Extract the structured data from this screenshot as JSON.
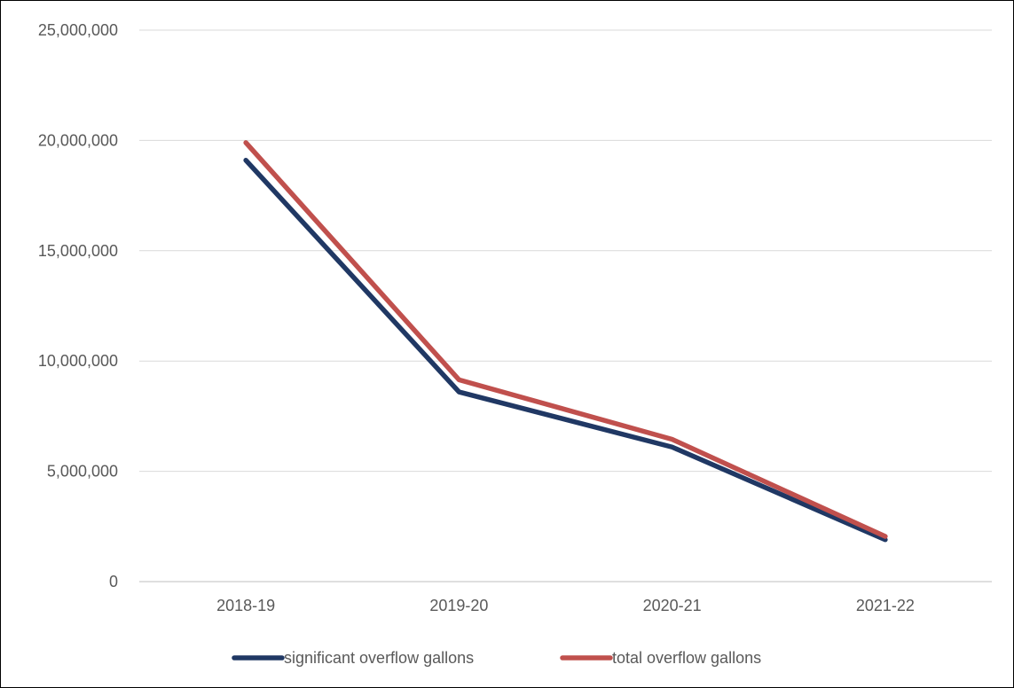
{
  "chart_data": {
    "type": "line",
    "title": "",
    "xlabel": "",
    "ylabel": "",
    "categories": [
      "2018-19",
      "2019-20",
      "2020-21",
      "2021-22"
    ],
    "ylim": [
      0,
      25000000
    ],
    "y_ticks": [
      0,
      5000000,
      10000000,
      15000000,
      20000000,
      25000000
    ],
    "y_tick_labels": [
      "0",
      "5,000,000",
      "10,000,000",
      "15,000,000",
      "20,000,000",
      "25,000,000"
    ],
    "grid": true,
    "legend_position": "bottom",
    "series": [
      {
        "name": "significant overflow gallons",
        "color": "#203864",
        "values": [
          19100000,
          8600000,
          6100000,
          1900000
        ]
      },
      {
        "name": "total overflow gallons",
        "color": "#C0504D",
        "values": [
          19900000,
          9150000,
          6450000,
          2050000
        ]
      }
    ]
  }
}
